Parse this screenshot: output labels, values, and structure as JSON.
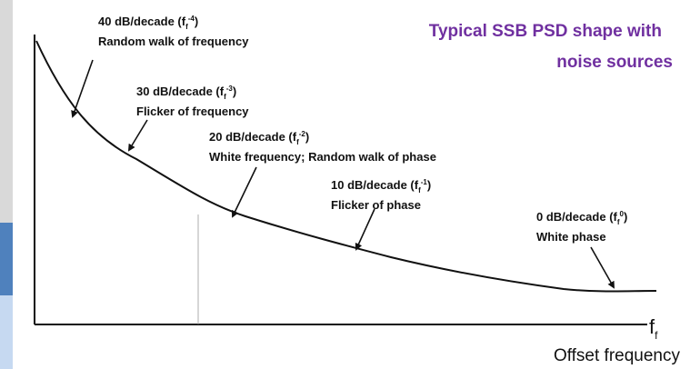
{
  "title": {
    "line1": "Typical SSB PSD shape with",
    "line2": "noise sources"
  },
  "annotations": [
    {
      "prefix": "40 dB/decade (f",
      "sub": "f",
      "sup": "-4",
      "suffix": ")",
      "description": "Random walk of frequency"
    },
    {
      "prefix": "30 dB/decade (f",
      "sub": "f",
      "sup": "-3",
      "suffix": ")",
      "description": "Flicker of frequency"
    },
    {
      "prefix": "20 dB/decade (f",
      "sub": "f",
      "sup": "-2",
      "suffix": ")",
      "description": "White frequency; Random walk of phase"
    },
    {
      "prefix": "10 dB/decade (f",
      "sub": "f",
      "sup": "-1",
      "suffix": ")",
      "description": "Flicker of phase"
    },
    {
      "prefix": "0 dB/decade (f",
      "sub": "f",
      "sup": "0",
      "suffix": ")",
      "description": "White phase"
    }
  ],
  "x_axis": {
    "symbol": "f",
    "sub": "f",
    "label": "Offset frequency"
  }
}
